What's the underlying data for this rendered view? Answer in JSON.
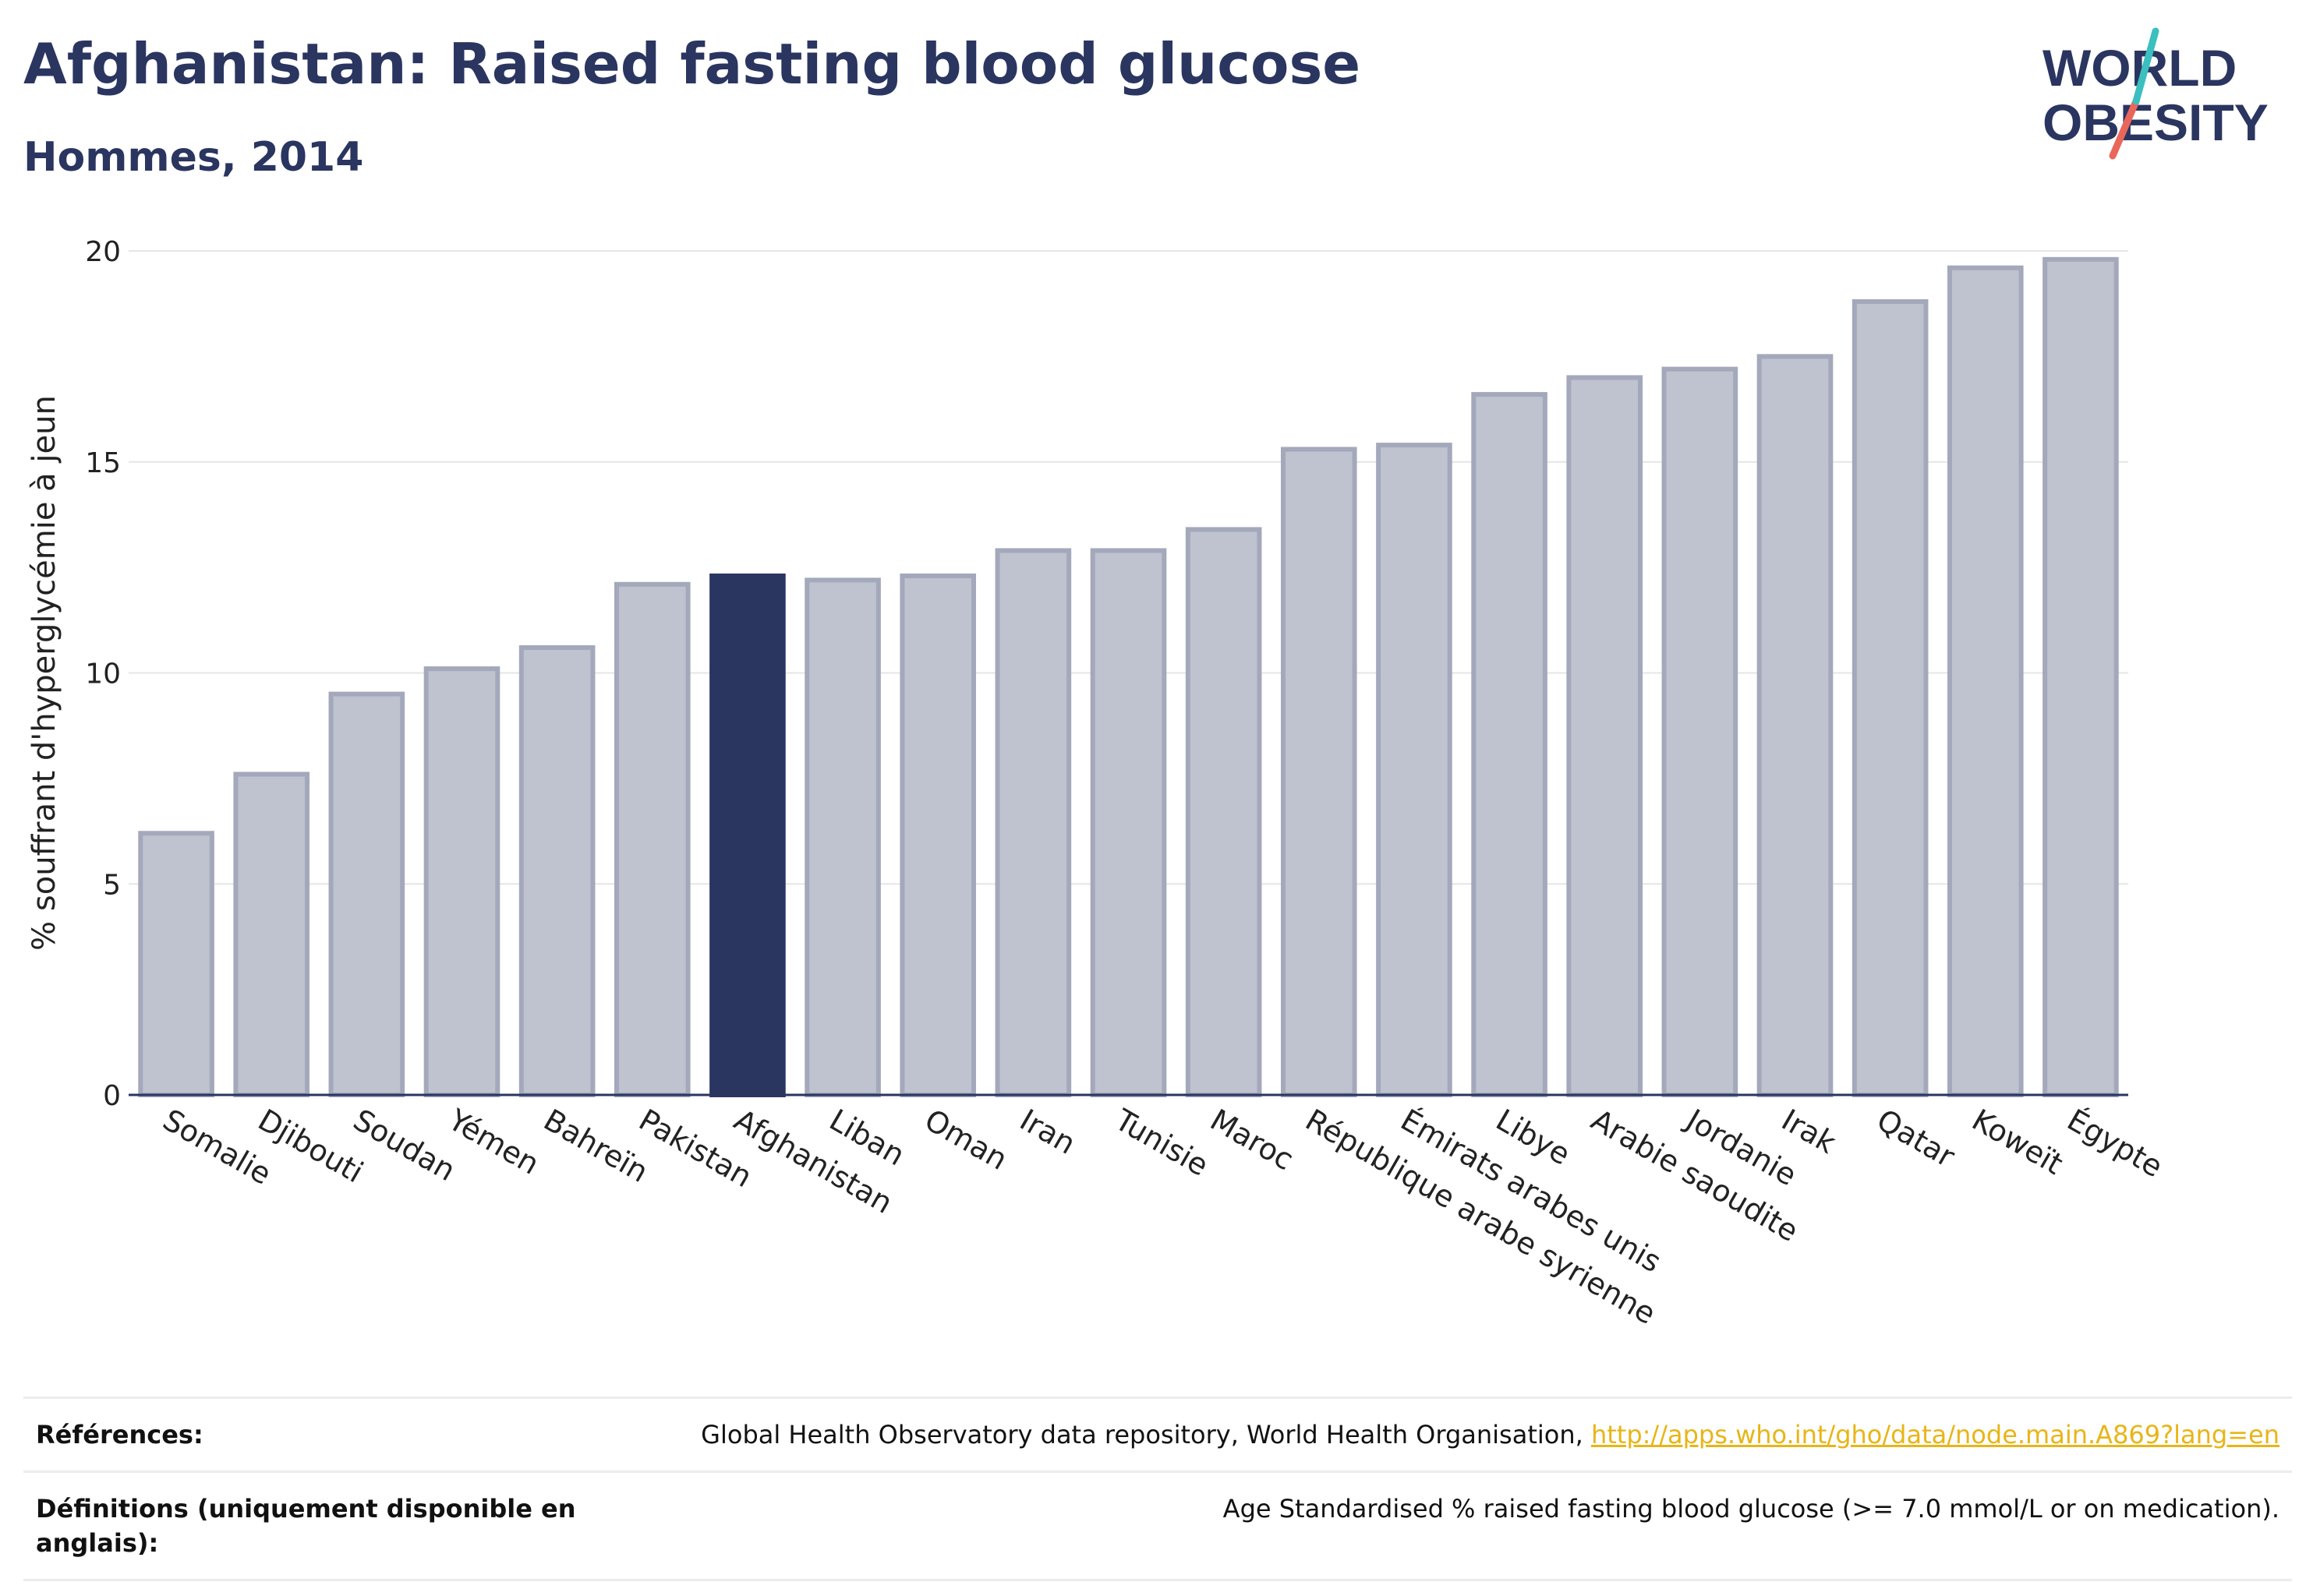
{
  "header": {
    "title": "Afghanistan: Raised fasting blood glucose",
    "subtitle": "Hommes, 2014"
  },
  "logo": {
    "line1": "WORLD",
    "line2": "OBESITY"
  },
  "colors": {
    "highlight": "#2a3560",
    "bar_fill": "#bfc2cf",
    "bar_stroke": "#a3a8bb",
    "grid": "#e6e6e6",
    "link": "#e8b517",
    "logo_teal": "#3bbfbf",
    "logo_coral": "#e9675a"
  },
  "chart_data": {
    "type": "bar",
    "ylabel": "% souffrant d'hyperglycémie à jeun",
    "ylim": [
      0,
      20
    ],
    "yticks": [
      0,
      5,
      10,
      15,
      20
    ],
    "grid": true,
    "highlight": "Afghanistan",
    "categories": [
      "Somalie",
      "Djibouti",
      "Soudan",
      "Yémen",
      "Bahreïn",
      "Pakistan",
      "Afghanistan",
      "Liban",
      "Oman",
      "Iran",
      "Tunisie",
      "Maroc",
      "République arabe syrienne",
      "Émirats arabes unis",
      "Libye",
      "Arabie saoudite",
      "Jordanie",
      "Irak",
      "Qatar",
      "Koweït",
      "Égypte"
    ],
    "values": [
      6.2,
      7.6,
      9.5,
      10.1,
      10.6,
      12.1,
      12.3,
      12.2,
      12.3,
      12.9,
      12.9,
      13.4,
      15.3,
      15.4,
      16.6,
      17.0,
      17.2,
      17.5,
      18.8,
      19.6,
      19.8
    ]
  },
  "references": {
    "refs_label": "Références:",
    "refs_text": "Global Health Observatory data repository, World Health Organisation, ",
    "refs_link": "http://apps.who.int/gho/data/node.main.A869?lang=en",
    "defs_label": "Définitions (uniquement disponible en anglais):",
    "defs_text": "Age Standardised % raised fasting blood glucose (>= 7.0 mmol/L or on medication)."
  }
}
